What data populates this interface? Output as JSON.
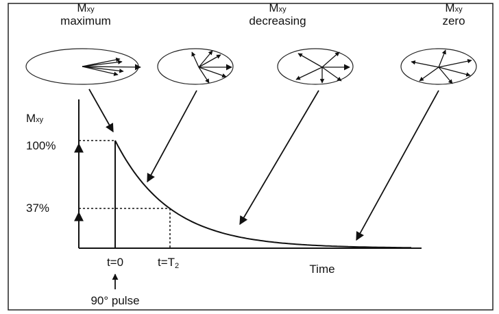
{
  "stages": [
    {
      "symbol": "M",
      "subscript": "xy",
      "label": "maximum"
    },
    {
      "symbol": "M",
      "subscript": "xy",
      "label": "decreasing"
    },
    {
      "symbol": "M",
      "subscript": "xy",
      "label": "zero"
    }
  ],
  "axis": {
    "symbol": "M",
    "subscript": "xy",
    "x_label": "Time"
  },
  "levels": {
    "top": "100%",
    "mid": "37%"
  },
  "times": {
    "start": "t=0",
    "t2_main": "t=T",
    "t2_sub": "2",
    "pulse": "90° pulse"
  }
}
